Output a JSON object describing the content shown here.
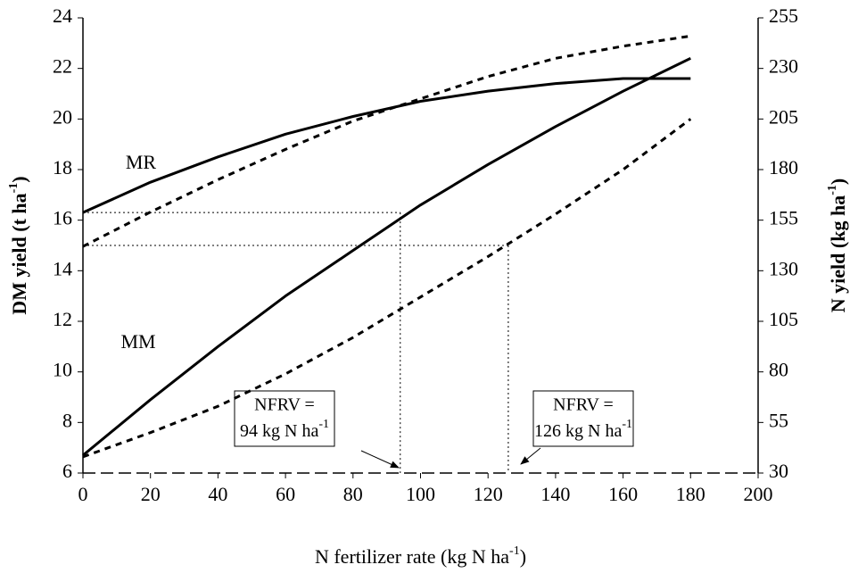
{
  "chart_data": {
    "type": "line",
    "x_label": {
      "text": "N fertilizer rate (kg N ha",
      "sup": "-1",
      "tail": ")"
    },
    "y_label": {
      "text": "DM yield (t ha",
      "sup": "-1",
      "tail": ")"
    },
    "y2_label": {
      "text": "N yield (kg ha",
      "sup": "-1",
      "tail": ")"
    },
    "x": [
      0,
      20,
      40,
      60,
      80,
      100,
      120,
      140,
      160,
      180
    ],
    "series": [
      {
        "color": "#000000",
        "style": "solid",
        "values": [
          16.3,
          17.5,
          18.5,
          19.4,
          20.1,
          20.7,
          21.1,
          21.4,
          21.6,
          21.6
        ]
      },
      {
        "color": "#000000",
        "style": "solid",
        "values": [
          6.7,
          8.9,
          11.0,
          13.0,
          14.8,
          16.6,
          18.2,
          19.7,
          21.1,
          22.4
        ]
      },
      {
        "color": "#000000",
        "style": "dashed",
        "axis": "y2",
        "values": [
          142,
          159,
          175,
          190,
          204,
          215,
          226,
          235,
          241,
          246
        ]
      },
      {
        "color": "#000000",
        "style": "dashed",
        "axis": "y2",
        "values": [
          38,
          50,
          63,
          79,
          97,
          117,
          137,
          158,
          180,
          205
        ]
      }
    ],
    "reference_lines": [
      {
        "x": 94,
        "y": 16.3
      },
      {
        "x": 126,
        "y": 15.0
      }
    ],
    "xlim": [
      0,
      200
    ],
    "xticks": [
      0,
      20,
      40,
      60,
      80,
      100,
      120,
      140,
      160,
      180,
      200
    ],
    "ylim": [
      6,
      24
    ],
    "yticks": [
      6,
      8,
      10,
      12,
      14,
      16,
      18,
      20,
      22,
      24
    ],
    "y2lim": [
      30,
      255
    ],
    "y2ticks": [
      30,
      55,
      80,
      105,
      130,
      155,
      180,
      205,
      230,
      255
    ],
    "annotations": [
      {
        "text": "MR"
      },
      {
        "text": "MM"
      }
    ],
    "boxes": [
      {
        "line1": "NFRV =",
        "line2": "94 kg N ha",
        "sup": "-1"
      },
      {
        "line1": "NFRV =",
        "line2": "126 kg N ha",
        "sup": "-1"
      }
    ]
  }
}
